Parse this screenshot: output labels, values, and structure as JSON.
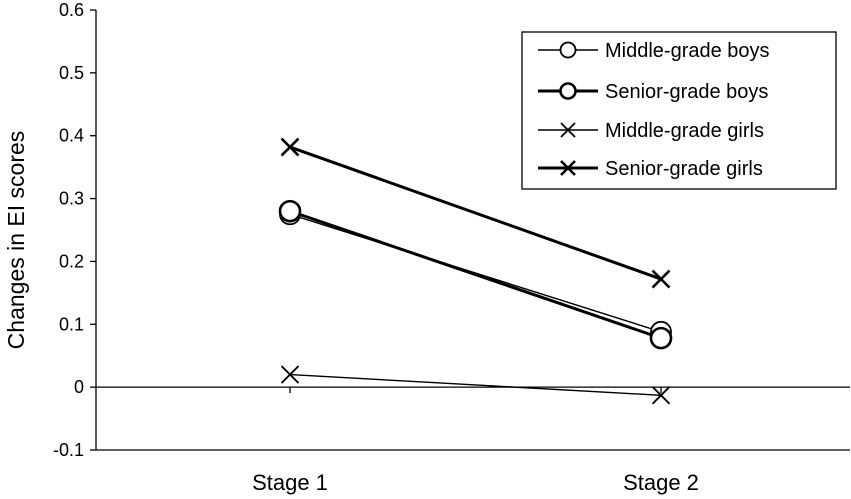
{
  "chart_data": {
    "type": "line",
    "title": "",
    "xlabel": "",
    "ylabel": "Changes in EI scores",
    "categories": [
      "Stage 1",
      "Stage 2"
    ],
    "ylim": [
      -0.1,
      0.6
    ],
    "yticks": [
      "-0.1",
      "0",
      "0.1",
      "0.2",
      "0.3",
      "0.4",
      "0.5",
      "0.6"
    ],
    "grid": false,
    "legend_position": "top-right",
    "series": [
      {
        "name": "Middle-grade boys",
        "values": [
          0.275,
          0.088
        ],
        "marker": "circle",
        "weight": "thin",
        "color": "#000000"
      },
      {
        "name": "Senior-grade boys",
        "values": [
          0.28,
          0.078
        ],
        "marker": "circle",
        "weight": "thick",
        "color": "#000000"
      },
      {
        "name": "Middle-grade girls",
        "values": [
          0.02,
          -0.013
        ],
        "marker": "x",
        "weight": "thin",
        "color": "#000000"
      },
      {
        "name": "Senior-grade girls",
        "values": [
          0.382,
          0.172
        ],
        "marker": "x",
        "weight": "thick",
        "color": "#000000"
      }
    ]
  }
}
